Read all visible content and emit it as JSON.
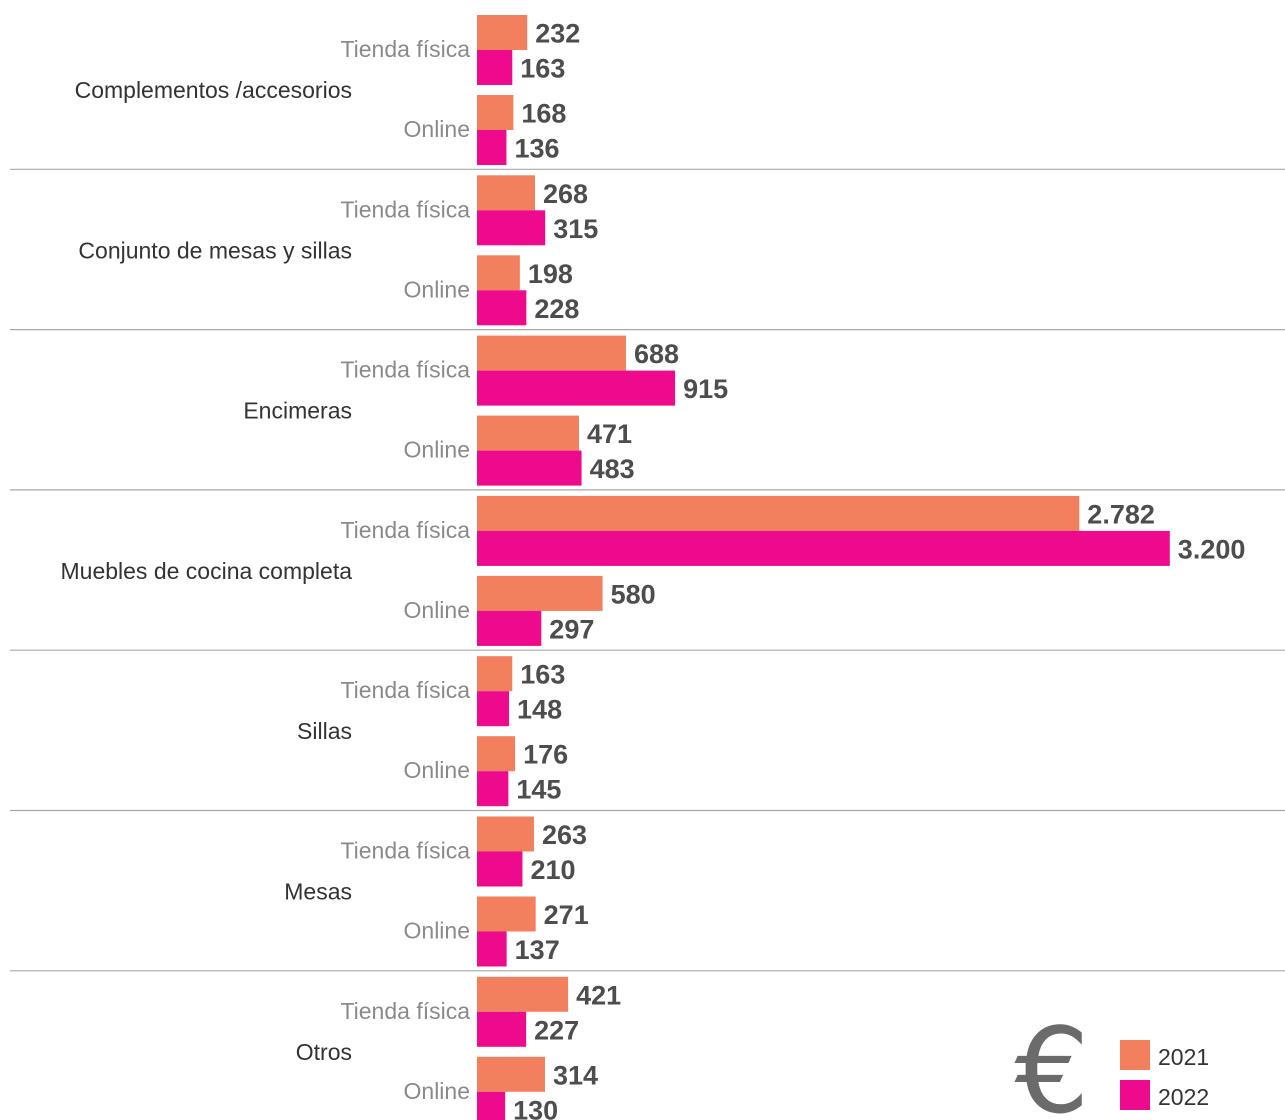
{
  "chart_data": {
    "type": "bar",
    "orientation": "horizontal",
    "unit_symbol": "€",
    "colors": {
      "2021": "#f27f5e",
      "2022": "#ee0a8c"
    },
    "legend": [
      "2021",
      "2022"
    ],
    "groups": [
      {
        "label": "Complementos /accesorios",
        "rows": [
          {
            "channel": "Tienda física",
            "values": [
              {
                "v": 232,
                "t": "232"
              },
              {
                "v": 163,
                "t": "163"
              }
            ]
          },
          {
            "channel": "Online",
            "values": [
              {
                "v": 168,
                "t": "168"
              },
              {
                "v": 136,
                "t": "136"
              }
            ]
          }
        ]
      },
      {
        "label": "Conjunto de mesas y sillas",
        "rows": [
          {
            "channel": "Tienda física",
            "values": [
              {
                "v": 268,
                "t": "268"
              },
              {
                "v": 315,
                "t": "315"
              }
            ]
          },
          {
            "channel": "Online",
            "values": [
              {
                "v": 198,
                "t": "198"
              },
              {
                "v": 228,
                "t": "228"
              }
            ]
          }
        ]
      },
      {
        "label": "Encimeras",
        "rows": [
          {
            "channel": "Tienda física",
            "values": [
              {
                "v": 688,
                "t": "688"
              },
              {
                "v": 915,
                "t": "915"
              }
            ]
          },
          {
            "channel": "Online",
            "values": [
              {
                "v": 471,
                "t": "471"
              },
              {
                "v": 483,
                "t": "483"
              }
            ]
          }
        ]
      },
      {
        "label": "Muebles de cocina completa",
        "rows": [
          {
            "channel": "Tienda física",
            "values": [
              {
                "v": 2782,
                "t": "2.782"
              },
              {
                "v": 3200,
                "t": "3.200"
              }
            ]
          },
          {
            "channel": "Online",
            "values": [
              {
                "v": 580,
                "t": "580"
              },
              {
                "v": 297,
                "t": "297"
              }
            ]
          }
        ]
      },
      {
        "label": "Sillas",
        "rows": [
          {
            "channel": "Tienda física",
            "values": [
              {
                "v": 163,
                "t": "163"
              },
              {
                "v": 148,
                "t": "148"
              }
            ]
          },
          {
            "channel": "Online",
            "values": [
              {
                "v": 176,
                "t": "176"
              },
              {
                "v": 145,
                "t": "145"
              }
            ]
          }
        ]
      },
      {
        "label": "Mesas",
        "rows": [
          {
            "channel": "Tienda física",
            "values": [
              {
                "v": 263,
                "t": "263"
              },
              {
                "v": 210,
                "t": "210"
              }
            ]
          },
          {
            "channel": "Online",
            "values": [
              {
                "v": 271,
                "t": "271"
              },
              {
                "v": 137,
                "t": "137"
              }
            ]
          }
        ]
      },
      {
        "label": "Otros",
        "rows": [
          {
            "channel": "Tienda física",
            "values": [
              {
                "v": 421,
                "t": "421"
              },
              {
                "v": 227,
                "t": "227"
              }
            ]
          },
          {
            "channel": "Online",
            "values": [
              {
                "v": 314,
                "t": "314"
              },
              {
                "v": 130,
                "t": "130"
              }
            ]
          }
        ]
      }
    ]
  }
}
